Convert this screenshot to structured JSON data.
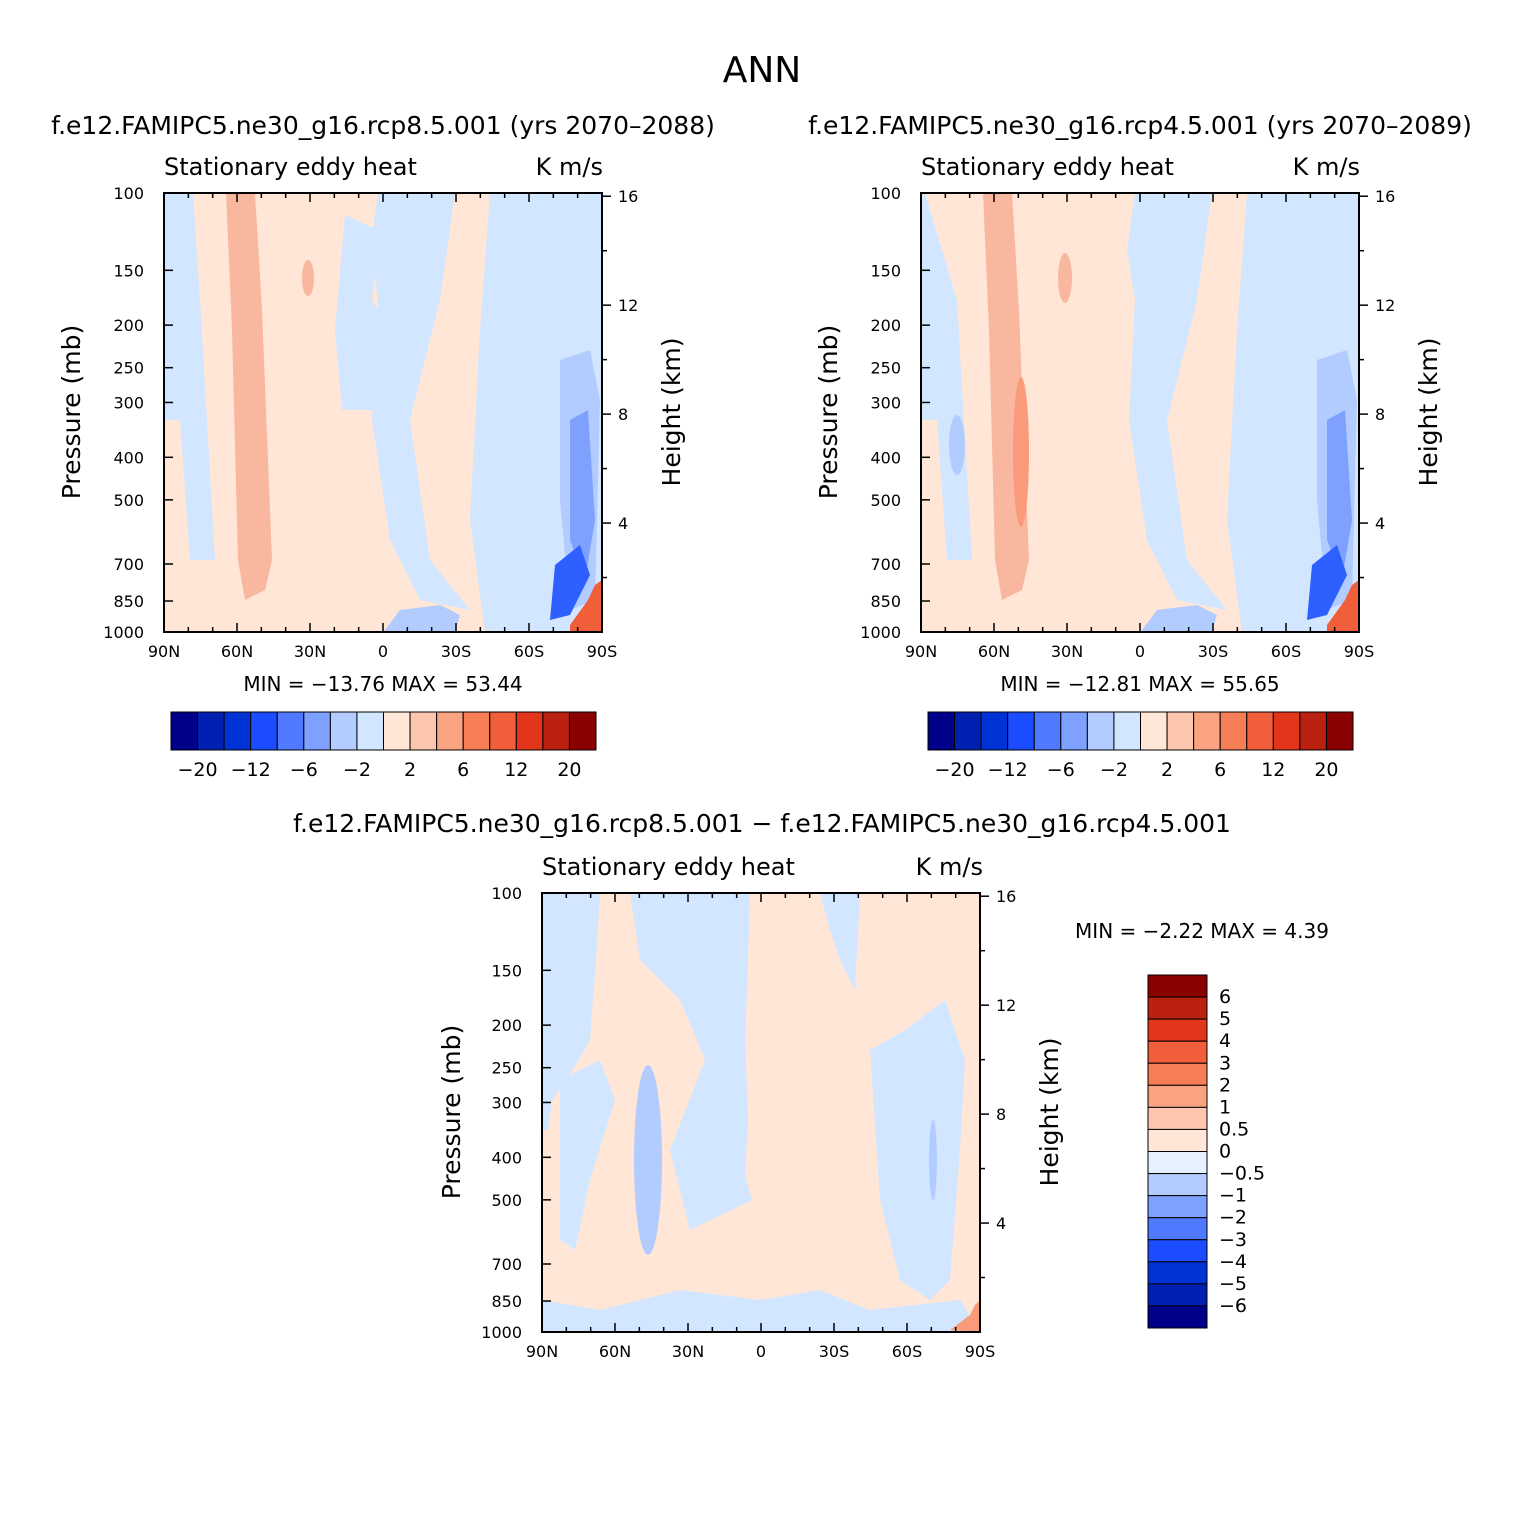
{
  "title": "ANN",
  "chart_data": [
    {
      "type": "heatmap",
      "title": "f.e12.FAMIPC5.ne30_g16.rcp8.5.001 (yrs 2070–2088)",
      "left_label": "Stationary eddy heat",
      "right_label": "K m/s",
      "ylabel": "Pressure (mb)",
      "y2label": "Height (km)",
      "x_ticks": [
        "90N",
        "60N",
        "30N",
        "0",
        "30S",
        "60S",
        "90S"
      ],
      "y_ticks": [
        "100",
        "150",
        "200",
        "250",
        "300",
        "400",
        "500",
        "700",
        "850",
        "1000"
      ],
      "y2_ticks": [
        "16",
        "12",
        "8",
        "4"
      ],
      "min": -13.76,
      "max": 53.44,
      "minmax": "MIN = −13.76   MAX =  53.44",
      "colorbar": {
        "tick_labels": [
          "−20",
          "−12",
          "−6",
          "−2",
          "2",
          "6",
          "12",
          "20"
        ],
        "colors": [
          "#00008b",
          "#0020b2",
          "#0033d6",
          "#1c4cff",
          "#4f7aff",
          "#7ea1ff",
          "#b3ccff",
          "#d3e6ff",
          "#ffe6d6",
          "#fcc6ae",
          "#f9a380",
          "#f77d56",
          "#f15e3a",
          "#e2351a",
          "#ba2110",
          "#8b0000"
        ]
      }
    },
    {
      "type": "heatmap",
      "title": "f.e12.FAMIPC5.ne30_g16.rcp4.5.001 (yrs 2070–2089)",
      "left_label": "Stationary eddy heat",
      "right_label": "K m/s",
      "ylabel": "Pressure (mb)",
      "y2label": "Height (km)",
      "x_ticks": [
        "90N",
        "60N",
        "30N",
        "0",
        "30S",
        "60S",
        "90S"
      ],
      "y_ticks": [
        "100",
        "150",
        "200",
        "250",
        "300",
        "400",
        "500",
        "700",
        "850",
        "1000"
      ],
      "y2_ticks": [
        "16",
        "12",
        "8",
        "4"
      ],
      "min": -12.81,
      "max": 55.65,
      "minmax": "MIN = −12.81   MAX =  55.65",
      "colorbar": {
        "tick_labels": [
          "−20",
          "−12",
          "−6",
          "−2",
          "2",
          "6",
          "12",
          "20"
        ],
        "colors": [
          "#00008b",
          "#0020b2",
          "#0033d6",
          "#1c4cff",
          "#4f7aff",
          "#7ea1ff",
          "#b3ccff",
          "#d3e6ff",
          "#ffe6d6",
          "#fcc6ae",
          "#f9a380",
          "#f77d56",
          "#f15e3a",
          "#e2351a",
          "#ba2110",
          "#8b0000"
        ]
      }
    },
    {
      "type": "heatmap",
      "title": "f.e12.FAMIPC5.ne30_g16.rcp8.5.001 − f.e12.FAMIPC5.ne30_g16.rcp4.5.001",
      "left_label": "Stationary eddy heat",
      "right_label": "K m/s",
      "ylabel": "Pressure (mb)",
      "y2label": "Height (km)",
      "x_ticks": [
        "90N",
        "60N",
        "30N",
        "0",
        "30S",
        "60S",
        "90S"
      ],
      "y_ticks": [
        "100",
        "150",
        "200",
        "250",
        "300",
        "400",
        "500",
        "700",
        "850",
        "1000"
      ],
      "y2_ticks": [
        "16",
        "12",
        "8",
        "4"
      ],
      "min": -2.22,
      "max": 4.39,
      "minmax": "MIN =   −2.22   MAX =    4.39",
      "colorbar": {
        "tick_labels": [
          "6",
          "5",
          "4",
          "3",
          "2",
          "1",
          "0.5",
          "0",
          "−0.5",
          "−1",
          "−2",
          "−3",
          "−4",
          "−5",
          "−6"
        ],
        "colors": [
          "#8b0000",
          "#ba2110",
          "#e2351a",
          "#f15e3a",
          "#f77d56",
          "#f9a380",
          "#fcc6ae",
          "#ffe6d6",
          "#e6f0ff",
          "#b3ccff",
          "#7ea1ff",
          "#4f7aff",
          "#1c4cff",
          "#0033d6",
          "#0020b2",
          "#00008b"
        ]
      }
    }
  ]
}
